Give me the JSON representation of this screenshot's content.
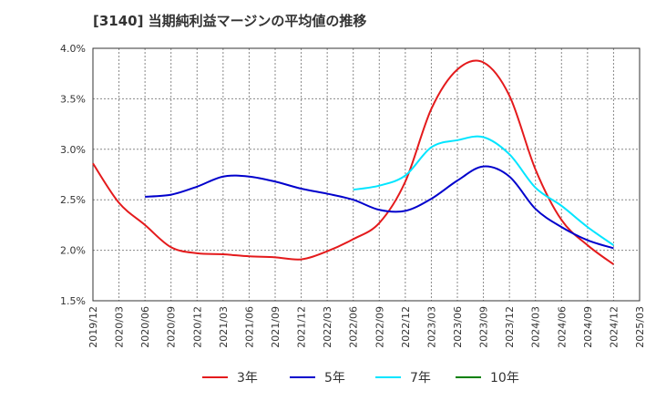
{
  "chart_data": {
    "type": "line",
    "title": "[3140]  当期純利益マージンの平均値の推移",
    "xlabel": "",
    "ylabel": "",
    "x": [
      "2019/12",
      "2020/03",
      "2020/06",
      "2020/09",
      "2020/12",
      "2021/03",
      "2021/06",
      "2021/09",
      "2021/12",
      "2022/03",
      "2022/06",
      "2022/09",
      "2022/12",
      "2023/03",
      "2023/06",
      "2023/09",
      "2023/12",
      "2024/03",
      "2024/06",
      "2024/09",
      "2024/12",
      "2025/03"
    ],
    "ylim": [
      1.5,
      4.0
    ],
    "yticks": [
      1.5,
      2.0,
      2.5,
      3.0,
      3.5,
      4.0
    ],
    "ytick_labels": [
      "1.5%",
      "2.0%",
      "2.5%",
      "3.0%",
      "3.5%",
      "4.0%"
    ],
    "grid": true,
    "legend_position": "bottom",
    "series": [
      {
        "name": "3年",
        "color": "#e41a1c",
        "values": [
          2.86,
          2.47,
          2.25,
          2.03,
          1.97,
          1.96,
          1.94,
          1.93,
          1.91,
          1.99,
          2.11,
          2.27,
          2.68,
          3.4,
          3.79,
          3.86,
          3.53,
          2.8,
          2.3,
          2.05,
          1.86,
          null
        ]
      },
      {
        "name": "5年",
        "color": "#0000cc",
        "values": [
          null,
          null,
          2.53,
          2.55,
          2.63,
          2.73,
          2.73,
          2.68,
          2.61,
          2.56,
          2.5,
          2.4,
          2.39,
          2.51,
          2.69,
          2.83,
          2.73,
          2.41,
          2.23,
          2.1,
          2.02,
          null
        ]
      },
      {
        "name": "7年",
        "color": "#00e5ff",
        "values": [
          null,
          null,
          null,
          null,
          null,
          null,
          null,
          null,
          null,
          null,
          2.6,
          2.64,
          2.74,
          3.02,
          3.09,
          3.12,
          2.95,
          2.62,
          2.44,
          2.23,
          2.05,
          null
        ]
      },
      {
        "name": "10年",
        "color": "#008000",
        "values": [
          null,
          null,
          null,
          null,
          null,
          null,
          null,
          null,
          null,
          null,
          null,
          null,
          null,
          null,
          null,
          null,
          null,
          null,
          null,
          null,
          null,
          null
        ]
      }
    ]
  }
}
